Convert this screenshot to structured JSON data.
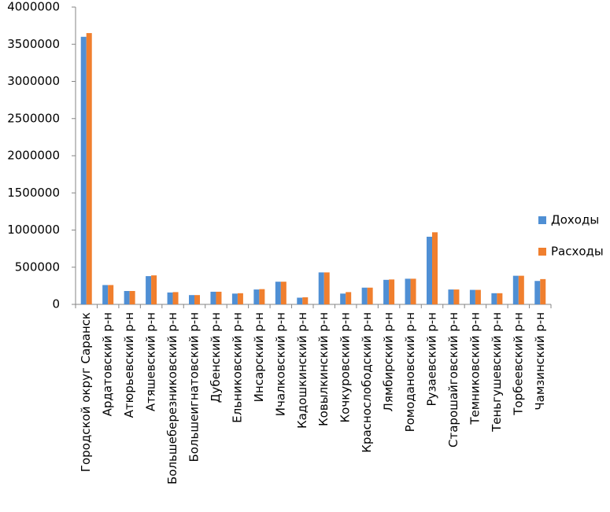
{
  "chart_data": {
    "type": "bar",
    "categories": [
      "Городской округ Саранск",
      "Ардатовский р-н",
      "Атюрьевский р-н",
      "Атяшевский р-н",
      "Большеберезниковский р-н",
      "Большеигнатовский р-н",
      "Дубенский р-н",
      "Ельниковский р-н",
      "Инсарский р-н",
      "Ичалковский р-н",
      "Кадошкинский р-н",
      "Ковылкинский р-н",
      "Кочкуровский р-н",
      "Краснослободский р-н",
      "Лямбирский р-н",
      "Ромодановский р-н",
      "Рузаевский р-н",
      "Старошайговский р-н",
      "Темниковский р-н",
      "Теньгушевский р-н",
      "Торбеевский р-н",
      "Чамзинский р-н"
    ],
    "series": [
      {
        "name": "Доходы",
        "color": "#4f8fd4",
        "values": [
          3600000,
          260000,
          180000,
          380000,
          160000,
          125000,
          170000,
          145000,
          200000,
          305000,
          90000,
          430000,
          145000,
          225000,
          330000,
          345000,
          910000,
          200000,
          195000,
          150000,
          385000,
          315000
        ]
      },
      {
        "name": "Расходы",
        "color": "#f07f2e",
        "values": [
          3650000,
          260000,
          180000,
          390000,
          165000,
          125000,
          170000,
          150000,
          205000,
          305000,
          95000,
          430000,
          165000,
          225000,
          335000,
          345000,
          970000,
          200000,
          195000,
          150000,
          385000,
          340000
        ]
      }
    ],
    "ylim": [
      0,
      4000000
    ],
    "yticks": [
      0,
      500000,
      1000000,
      1500000,
      2000000,
      2500000,
      3000000,
      3500000,
      4000000
    ],
    "legend": "right"
  }
}
